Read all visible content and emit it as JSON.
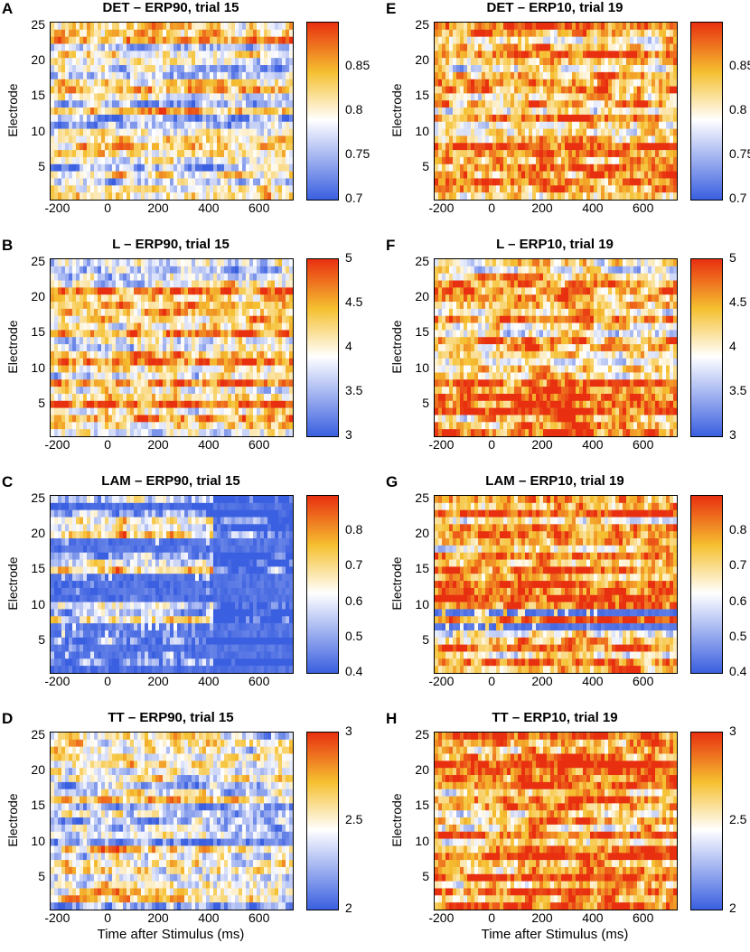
{
  "shared": {
    "ylabel": "Electrode",
    "xlabel": "Time after Stimulus (ms)",
    "xticks": [
      "-200",
      "0",
      "200",
      "400",
      "600"
    ],
    "yticks": [
      "25",
      "20",
      "15",
      "10",
      "5"
    ],
    "colormap": [
      "#3a5fe0",
      "#ffffff",
      "#f5c030",
      "#e83010"
    ]
  },
  "chart_data": [
    {
      "type": "heatmap",
      "letter": "A",
      "title": "DET – ERP90, trial 15",
      "xlabel": "",
      "ylabel": "Electrode",
      "xlim": [
        -230,
        730
      ],
      "ylim": [
        0.5,
        25.5
      ],
      "colorbar": {
        "range": [
          0.7,
          0.9
        ],
        "ticks": [
          "0.85",
          "0.8",
          "0.75",
          "0.7"
        ]
      },
      "bias": 0.0,
      "late_bias": 0.0,
      "dark_rows": []
    },
    {
      "type": "heatmap",
      "letter": "B",
      "title": "L – ERP90, trial 15",
      "xlabel": "",
      "ylabel": "Electrode",
      "xlim": [
        -230,
        730
      ],
      "ylim": [
        0.5,
        25.5
      ],
      "colorbar": {
        "range": [
          3,
          5
        ],
        "ticks": [
          "5",
          "4.5",
          "4",
          "3.5",
          "3"
        ]
      },
      "bias": 0.15,
      "late_bias": 0.1,
      "dark_rows": []
    },
    {
      "type": "heatmap",
      "letter": "C",
      "title": "LAM – ERP90, trial 15",
      "xlabel": "",
      "ylabel": "Electrode",
      "xlim": [
        -230,
        730
      ],
      "ylim": [
        0.5,
        25.5
      ],
      "colorbar": {
        "range": [
          0.4,
          0.9
        ],
        "ticks": [
          "0.8",
          "0.7",
          "0.6",
          "0.5",
          "0.4"
        ]
      },
      "bias": -0.1,
      "late_bias": -1.5,
      "dark_rows": [
        1,
        3,
        4,
        6,
        7,
        11,
        12,
        13,
        14,
        18,
        19,
        24
      ]
    },
    {
      "type": "heatmap",
      "letter": "D",
      "title": "TT – ERP90, trial 15",
      "xlabel": "Time after Stimulus (ms)",
      "ylabel": "Electrode",
      "xlim": [
        -230,
        730
      ],
      "ylim": [
        0.5,
        25.5
      ],
      "colorbar": {
        "range": [
          2,
          3
        ],
        "ticks": [
          "3",
          "2.5",
          "2"
        ]
      },
      "bias": -0.1,
      "late_bias": -0.2,
      "dark_rows": []
    },
    {
      "type": "heatmap",
      "letter": "E",
      "title": "DET – ERP10, trial 19",
      "xlabel": "",
      "ylabel": "Electrode",
      "xlim": [
        -230,
        730
      ],
      "ylim": [
        0.5,
        25.5
      ],
      "colorbar": {
        "range": [
          0.7,
          0.9
        ],
        "ticks": [
          "0.85",
          "0.8",
          "0.75",
          "0.7"
        ]
      },
      "bias": 0.25,
      "late_bias": 0.1,
      "dark_rows": []
    },
    {
      "type": "heatmap",
      "letter": "F",
      "title": "L – ERP10, trial 19",
      "xlabel": "",
      "ylabel": "Electrode",
      "xlim": [
        -230,
        730
      ],
      "ylim": [
        0.5,
        25.5
      ],
      "colorbar": {
        "range": [
          3,
          5
        ],
        "ticks": [
          "5",
          "4.5",
          "4",
          "3.5",
          "3"
        ]
      },
      "bias": 0.3,
      "late_bias": 0.0,
      "dark_rows": []
    },
    {
      "type": "heatmap",
      "letter": "G",
      "title": "LAM – ERP10, trial 19",
      "xlabel": "",
      "ylabel": "Electrode",
      "xlim": [
        -230,
        730
      ],
      "ylim": [
        0.5,
        25.5
      ],
      "colorbar": {
        "range": [
          0.4,
          0.9
        ],
        "ticks": [
          "0.8",
          "0.7",
          "0.6",
          "0.5",
          "0.4"
        ]
      },
      "bias": 0.35,
      "late_bias": 0.1,
      "dark_rows": [
        7,
        9
      ]
    },
    {
      "type": "heatmap",
      "letter": "H",
      "title": "TT – ERP10, trial 19",
      "xlabel": "Time after Stimulus (ms)",
      "ylabel": "Electrode",
      "xlim": [
        -230,
        730
      ],
      "ylim": [
        0.5,
        25.5
      ],
      "colorbar": {
        "range": [
          2,
          3
        ],
        "ticks": [
          "3",
          "2.5",
          "2"
        ]
      },
      "bias": 0.4,
      "late_bias": 0.2,
      "dark_rows": []
    }
  ]
}
